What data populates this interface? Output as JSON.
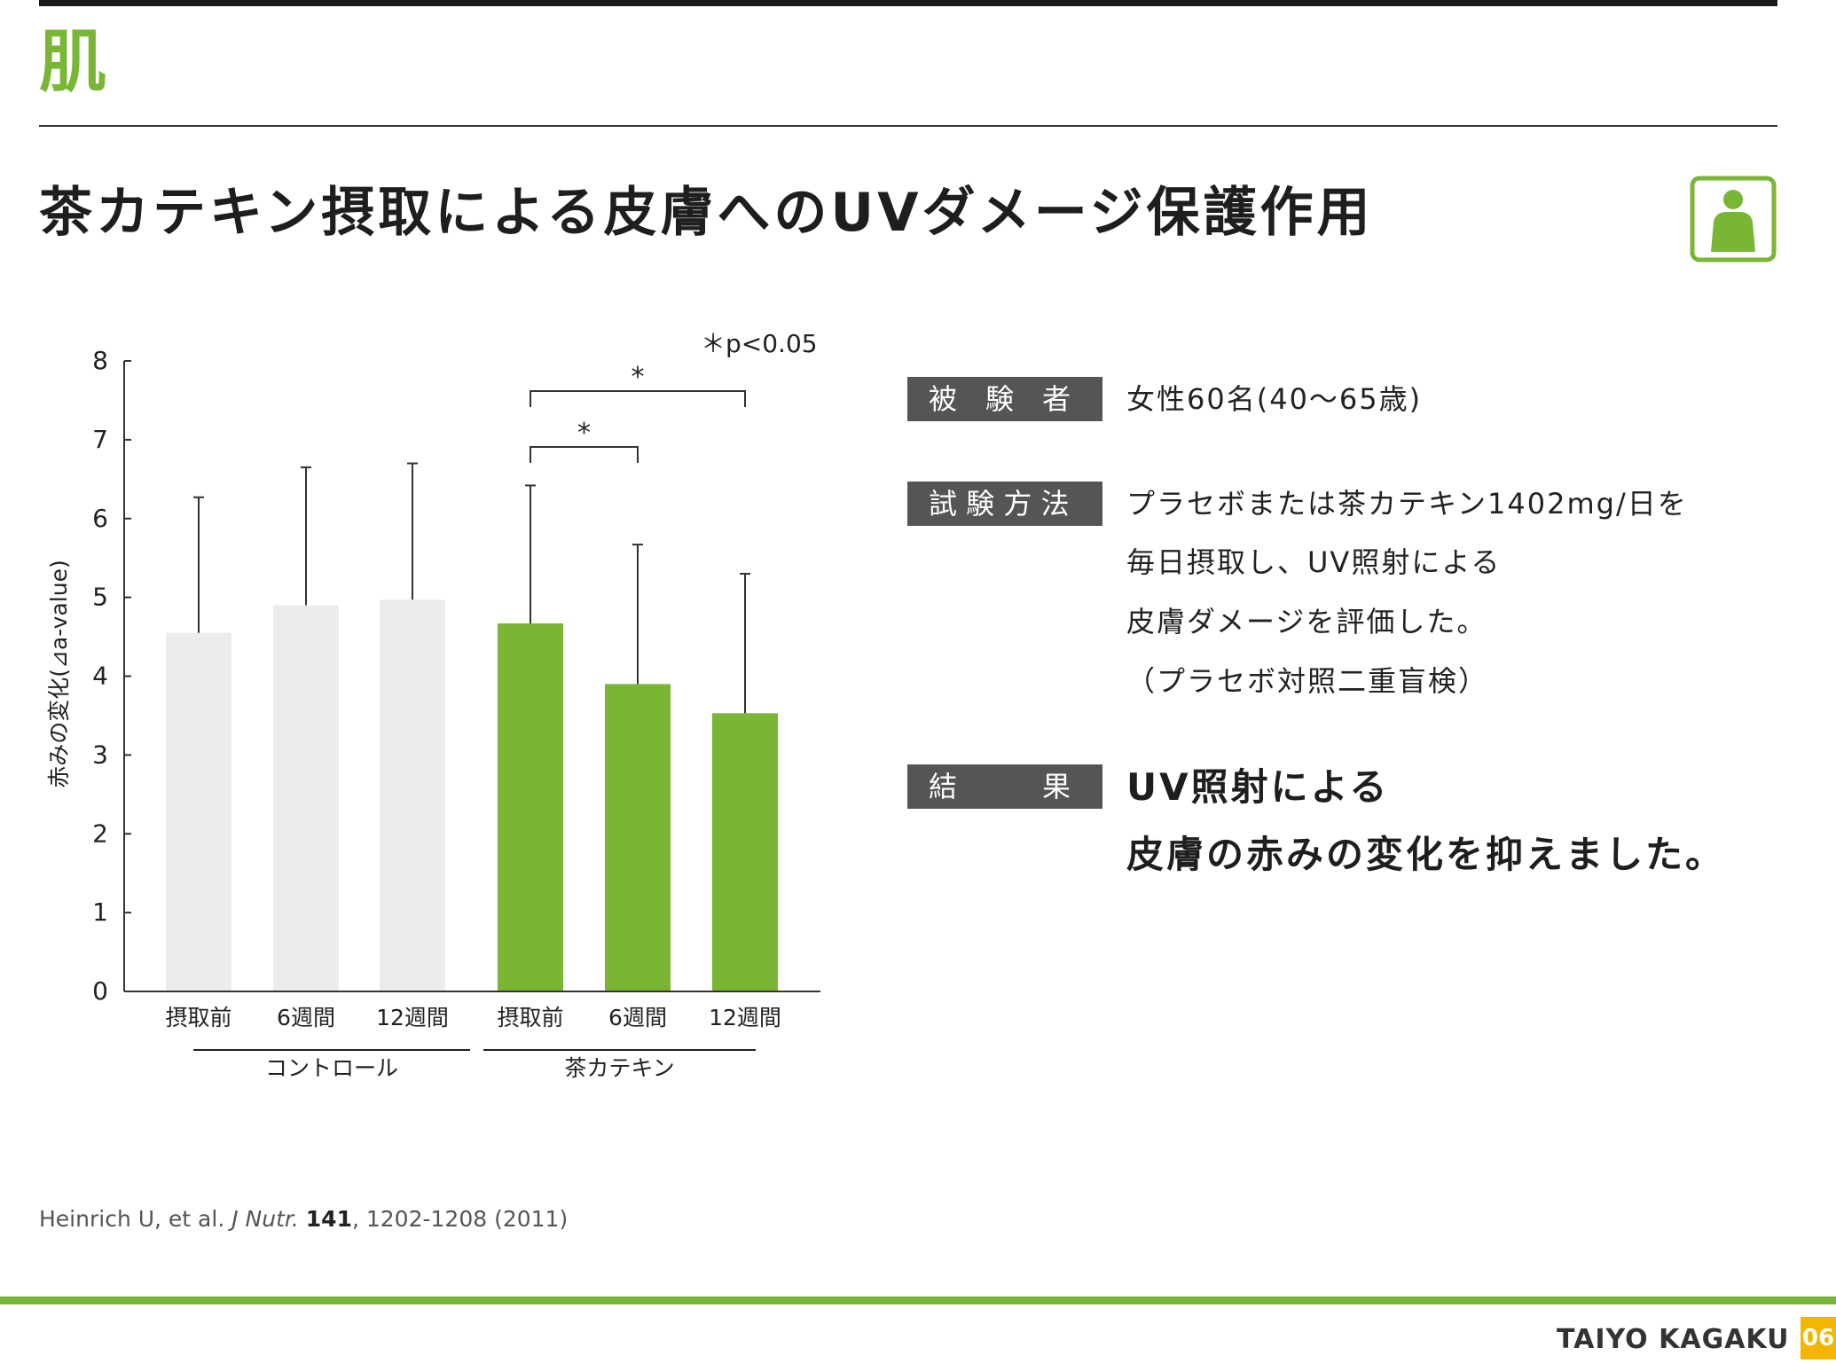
{
  "section": {
    "title": "肌"
  },
  "header": {
    "title": "茶カテキン摂取による皮膚へのUVダメージ保護作用",
    "icon": "person-icon"
  },
  "colors": {
    "accent": "#7ab635",
    "control_bar": "#ececec",
    "tag_bg": "#555555",
    "page_badge": "#f2b600"
  },
  "chart_data": {
    "type": "bar",
    "ylabel": "赤みの変化(⊿a-value)",
    "ylim": [
      0,
      8
    ],
    "yticks": [
      0,
      1,
      2,
      3,
      4,
      5,
      6,
      7,
      8
    ],
    "categories": [
      "摂取前",
      "6週間",
      "12週間",
      "摂取前",
      "6週間",
      "12週間"
    ],
    "groups": [
      {
        "name": "コントロール",
        "color": "#ececec"
      },
      {
        "name": "茶カテキン",
        "color": "#7ab635"
      }
    ],
    "series": [
      {
        "values": [
          4.55,
          4.9,
          4.97,
          4.67,
          3.9,
          3.53
        ],
        "error_upper": [
          6.27,
          6.65,
          6.7,
          6.42,
          5.67,
          5.3
        ]
      }
    ],
    "significance": [
      {
        "from": 3,
        "to": 4,
        "label": "*"
      },
      {
        "from": 3,
        "to": 5,
        "label": "*"
      }
    ],
    "note": "＊p<0.05"
  },
  "study": {
    "subjects_label": "被　験　者",
    "subjects": "女性60名(40～65歳)",
    "method_label": "試 験 方 法",
    "method_lines": [
      "プラセボまたは茶カテキン1402mg/日を",
      "毎日摂取し、UV照射による",
      "皮膚ダメージを評価した。",
      "（プラセボ対照二重盲検）"
    ],
    "result_label": "結　　　果",
    "result_lines": [
      "UV照射による",
      "皮膚の赤みの変化を抑えました。"
    ]
  },
  "citation": {
    "authors": "Heinrich U, et al. ",
    "journal": "J Nutr.",
    "volume": "141",
    "pages": ", 1202-1208 (2011)"
  },
  "footer": {
    "brand": "TAIYO KAGAKU",
    "page": "06"
  }
}
